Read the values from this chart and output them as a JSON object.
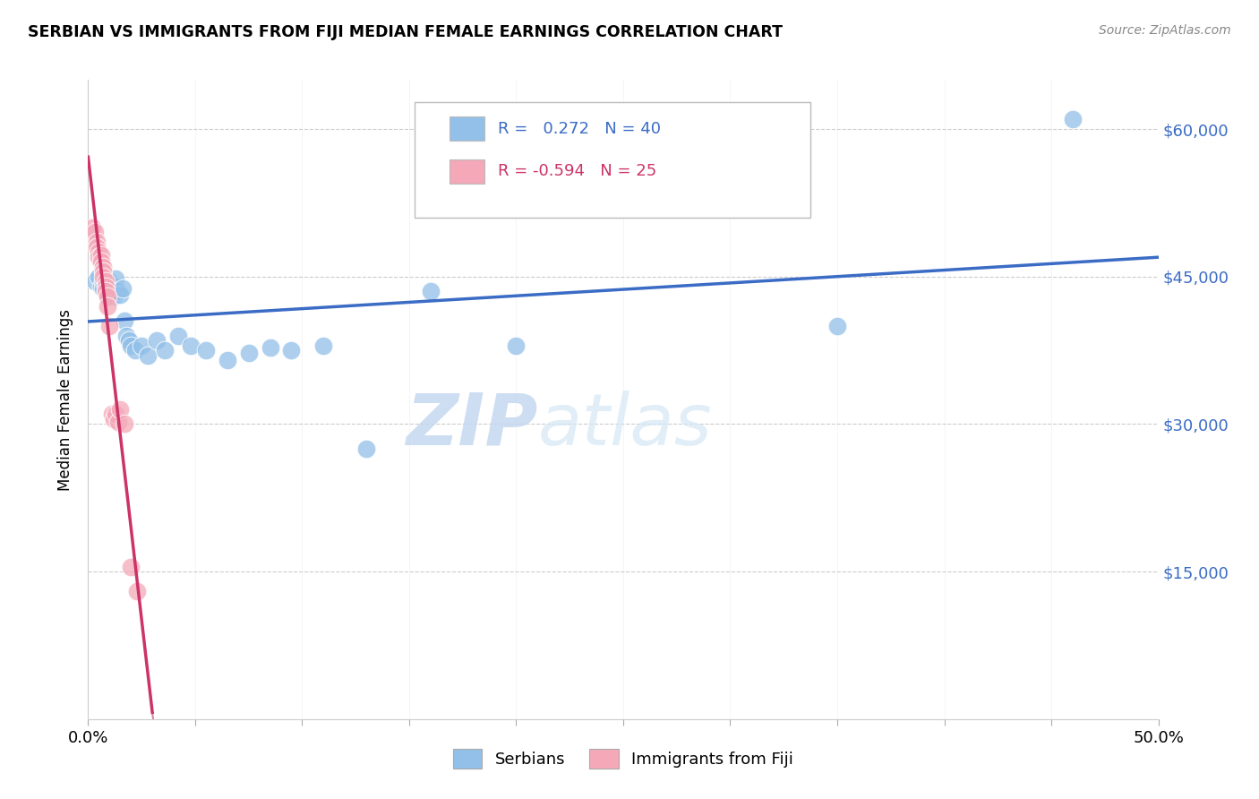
{
  "title": "SERBIAN VS IMMIGRANTS FROM FIJI MEDIAN FEMALE EARNINGS CORRELATION CHART",
  "source": "Source: ZipAtlas.com",
  "ylabel": "Median Female Earnings",
  "x_min": 0.0,
  "x_max": 0.5,
  "y_min": 0,
  "y_max": 65000,
  "x_ticks": [
    0.0,
    0.05,
    0.1,
    0.15,
    0.2,
    0.25,
    0.3,
    0.35,
    0.4,
    0.45,
    0.5
  ],
  "y_ticks": [
    0,
    15000,
    30000,
    45000,
    60000
  ],
  "y_tick_labels": [
    "",
    "$15,000",
    "$30,000",
    "$45,000",
    "$60,000"
  ],
  "watermark_zip": "ZIP",
  "watermark_atlas": "atlas",
  "legend_serbian": "Serbians",
  "legend_fiji": "Immigrants from Fiji",
  "r_serbian": 0.272,
  "n_serbian": 40,
  "r_fiji": -0.594,
  "n_fiji": 25,
  "serbian_color": "#92C0E8",
  "fiji_color": "#F4A8B8",
  "line_serbian_color": "#3B6CC5",
  "line_fiji_color": "#CC3366",
  "serbian_data_x": [
    0.003,
    0.005,
    0.006,
    0.007,
    0.007,
    0.008,
    0.008,
    0.009,
    0.009,
    0.01,
    0.01,
    0.011,
    0.012,
    0.013,
    0.013,
    0.014,
    0.015,
    0.016,
    0.017,
    0.018,
    0.019,
    0.02,
    0.022,
    0.025,
    0.028,
    0.032,
    0.036,
    0.042,
    0.048,
    0.055,
    0.065,
    0.075,
    0.085,
    0.095,
    0.11,
    0.13,
    0.16,
    0.2,
    0.35,
    0.46
  ],
  "serbian_data_y": [
    44500,
    45000,
    44000,
    44500,
    43800,
    43500,
    44200,
    44000,
    43200,
    43800,
    44500,
    43500,
    43000,
    44000,
    44800,
    43500,
    43200,
    43800,
    40500,
    39000,
    38500,
    38000,
    37500,
    38000,
    37000,
    38500,
    37500,
    39000,
    38000,
    37500,
    36500,
    37200,
    37800,
    37500,
    38000,
    27500,
    43500,
    38000,
    40000,
    61000
  ],
  "fiji_data_x": [
    0.002,
    0.003,
    0.004,
    0.004,
    0.005,
    0.005,
    0.006,
    0.006,
    0.007,
    0.007,
    0.007,
    0.008,
    0.008,
    0.008,
    0.009,
    0.009,
    0.01,
    0.011,
    0.012,
    0.013,
    0.014,
    0.015,
    0.017,
    0.02,
    0.023
  ],
  "fiji_data_y": [
    50000,
    49500,
    48500,
    48000,
    47500,
    47000,
    47200,
    46500,
    46000,
    45500,
    45000,
    44500,
    44000,
    43500,
    43000,
    42000,
    40000,
    31000,
    30500,
    31000,
    30200,
    31500,
    30000,
    15500,
    13000
  ]
}
